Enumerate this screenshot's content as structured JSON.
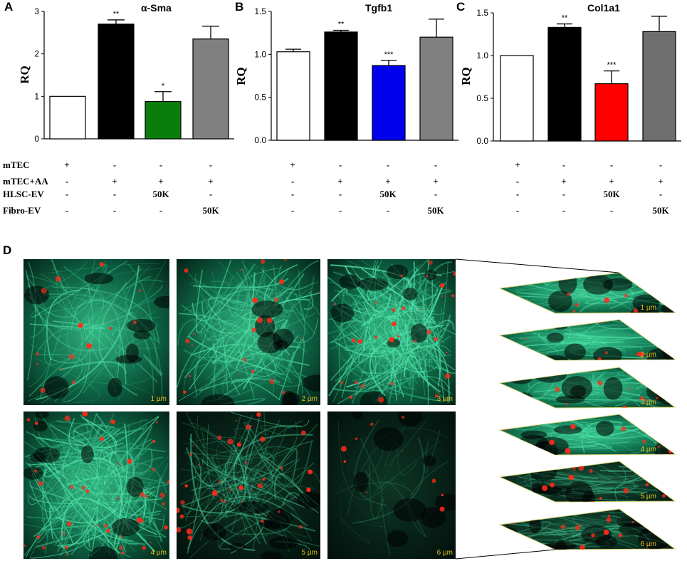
{
  "colors": {
    "white_bar": "#ffffff",
    "black_bar": "#000000",
    "green_bar": "#0b7d0b",
    "blue_bar": "#0000ee",
    "red_bar": "#ff0000",
    "gray_bar": "#808080",
    "gray_bar_dark": "#6e6e6e",
    "scale_label": "#e8c020"
  },
  "chart_data": [
    {
      "type": "bar",
      "panel": "A",
      "title": "α-Sma",
      "ylabel": "RQ",
      "ylim": [
        0,
        3
      ],
      "yticks": [
        "0",
        "1",
        "2",
        "3"
      ],
      "categories": [
        "mTEC",
        "mTEC+AA",
        "mTEC+AA+HLSC-EV 50K",
        "mTEC+AA+Fibro-EV 50K"
      ],
      "values": [
        1.0,
        2.7,
        0.88,
        2.35
      ],
      "errors": [
        0,
        0.1,
        0.23,
        0.3
      ],
      "significance": [
        "",
        "**",
        "*",
        ""
      ],
      "bar_colors": [
        "#ffffff",
        "#000000",
        "#0b7d0b",
        "#808080"
      ]
    },
    {
      "type": "bar",
      "panel": "B",
      "title": "Tgfb1",
      "ylabel": "RQ",
      "ylim": [
        0,
        1.5
      ],
      "yticks": [
        "0.0",
        "0.5",
        "1.0",
        "1.5"
      ],
      "categories": [
        "mTEC",
        "mTEC+AA",
        "mTEC+AA+HLSC-EV 50K",
        "mTEC+AA+Fibro-EV 50K"
      ],
      "values": [
        1.03,
        1.26,
        0.87,
        1.2
      ],
      "errors": [
        0.03,
        0.02,
        0.06,
        0.21
      ],
      "significance": [
        "",
        "**",
        "***",
        ""
      ],
      "bar_colors": [
        "#ffffff",
        "#000000",
        "#0000ee",
        "#808080"
      ]
    },
    {
      "type": "bar",
      "panel": "C",
      "title": "Col1a1",
      "ylabel": "RQ",
      "ylim": [
        0,
        1.5
      ],
      "yticks": [
        "0.0",
        "0.5",
        "1.0",
        "1.5"
      ],
      "categories": [
        "mTEC",
        "mTEC+AA",
        "mTEC+AA+HLSC-EV 50K",
        "mTEC+AA+Fibro-EV 50K"
      ],
      "values": [
        1.0,
        1.33,
        0.67,
        1.28
      ],
      "errors": [
        0,
        0.04,
        0.15,
        0.18
      ],
      "significance": [
        "",
        "**",
        "***",
        ""
      ],
      "bar_colors": [
        "#ffffff",
        "#000000",
        "#ff0000",
        "#6e6e6e"
      ]
    }
  ],
  "conditions": {
    "row_labels": [
      "mTEC",
      "mTEC+AA",
      "HLSC-EV",
      "Fibro-EV"
    ],
    "rows": [
      [
        "+",
        "-",
        "-",
        "-"
      ],
      [
        "-",
        "+",
        "+",
        "+"
      ],
      [
        "-",
        "-",
        "50K",
        "-"
      ],
      [
        "-",
        "-",
        "-",
        "50K"
      ]
    ]
  },
  "panel_d": {
    "letter": "D",
    "image_labels": [
      "1 µm",
      "2 µm",
      "3 µm",
      "4 µm",
      "5 µm",
      "6 µm"
    ],
    "stack_labels": [
      "1 µm",
      "2 µm",
      "3 µm",
      "4 µm",
      "5 µm",
      "6 µm"
    ]
  }
}
